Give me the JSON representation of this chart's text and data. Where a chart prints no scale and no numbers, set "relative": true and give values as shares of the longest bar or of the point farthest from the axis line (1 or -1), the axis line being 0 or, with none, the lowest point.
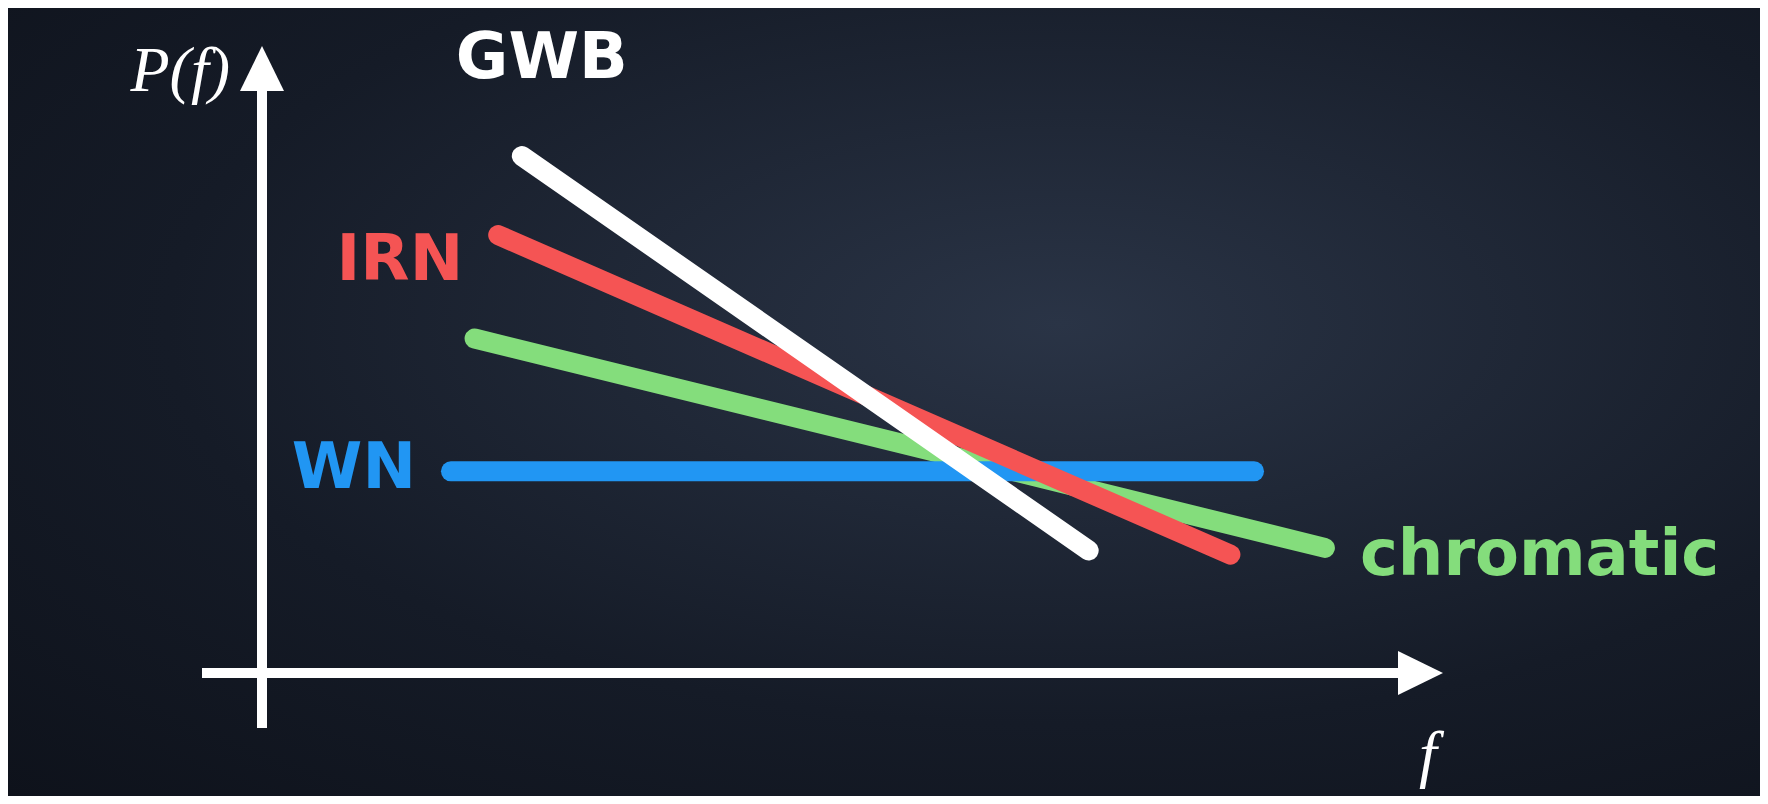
{
  "chart_data": {
    "type": "line",
    "relative": true,
    "xlabel": "f",
    "ylabel": "P(f)",
    "legend": false,
    "marker": "none",
    "line_style": "solid",
    "categories": [
      null,
      null,
      null,
      null,
      null,
      null,
      null,
      null,
      null,
      null,
      null,
      null,
      null,
      null,
      null,
      null,
      null,
      null,
      null,
      null,
      null,
      null,
      null,
      null,
      null,
      null,
      null,
      null,
      null,
      null,
      null,
      null,
      null,
      null,
      null,
      null,
      null,
      null,
      null,
      null,
      null,
      null,
      null,
      null,
      null,
      null,
      null,
      null,
      null,
      null,
      null
    ],
    "series": [
      {
        "name": "GWB",
        "color": "#ffffff",
        "values": [
          null,
          null,
          null,
          null,
          null,
          null,
          null,
          null,
          null,
          null,
          null,
          1,
          null,
          null,
          null,
          null,
          null,
          null,
          null,
          null,
          null,
          null,
          null,
          null,
          null,
          null,
          null,
          null,
          null,
          null,
          null,
          null,
          null,
          null,
          null,
          0.237,
          null,
          null,
          null,
          null,
          null,
          null,
          null,
          null,
          null,
          null,
          null,
          null,
          null,
          null,
          null
        ]
      },
      {
        "name": "IRN",
        "color": "#f55454",
        "values": [
          null,
          null,
          null,
          null,
          null,
          null,
          null,
          null,
          null,
          null,
          0.847,
          null,
          null,
          null,
          null,
          null,
          null,
          null,
          null,
          null,
          null,
          null,
          null,
          null,
          null,
          null,
          null,
          null,
          null,
          null,
          null,
          null,
          null,
          null,
          null,
          null,
          null,
          null,
          null,
          null,
          null,
          0.229,
          null,
          null,
          null,
          null,
          null,
          null,
          null,
          null,
          null
        ]
      },
      {
        "name": "WN",
        "color": "#2196f3",
        "values": [
          null,
          null,
          null,
          null,
          null,
          null,
          null,
          null,
          0.39,
          null,
          null,
          null,
          null,
          null,
          null,
          null,
          null,
          null,
          null,
          null,
          null,
          null,
          null,
          null,
          null,
          null,
          null,
          null,
          null,
          null,
          null,
          null,
          null,
          null,
          null,
          null,
          null,
          null,
          null,
          null,
          null,
          null,
          0.39,
          null,
          null,
          null,
          null,
          null,
          null,
          null,
          null
        ]
      },
      {
        "name": "chromatic",
        "color": "#84dd7c",
        "values": [
          null,
          null,
          null,
          null,
          null,
          null,
          null,
          null,
          null,
          0.647,
          null,
          null,
          null,
          null,
          null,
          null,
          null,
          null,
          null,
          null,
          null,
          null,
          null,
          null,
          null,
          null,
          null,
          null,
          null,
          null,
          null,
          null,
          null,
          null,
          null,
          null,
          null,
          null,
          null,
          null,
          null,
          null,
          null,
          null,
          null,
          0.242,
          null,
          null,
          null,
          null,
          null
        ]
      }
    ]
  }
}
